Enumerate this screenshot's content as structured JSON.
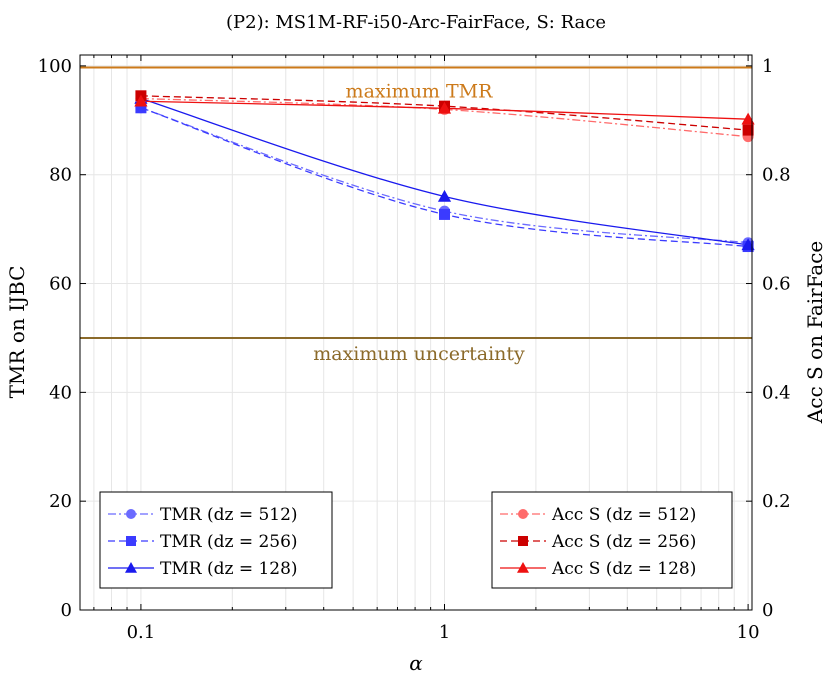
{
  "chart_data": {
    "type": "line",
    "title": "(P2):  MS1M-RF-i50-Arc-FairFace,  S: Race",
    "xlabel": "α",
    "ylabel_left": "TMR on IJBC",
    "ylabel_right": "Acc S on FairFace",
    "x_scale": "log",
    "xlim": [
      0.063,
      10.3
    ],
    "x_ticks": [
      0.1,
      1,
      10
    ],
    "x_tick_labels": [
      "0.1",
      "1",
      "10"
    ],
    "ylim_left": [
      0,
      102
    ],
    "y_ticks_left": [
      0,
      20,
      40,
      60,
      80,
      100
    ],
    "y_tick_labels_left": [
      "0",
      "20",
      "40",
      "60",
      "80",
      "100"
    ],
    "ylim_right": [
      0,
      1.02
    ],
    "y_ticks_right": [
      0,
      0.2,
      0.4,
      0.6,
      0.8,
      1
    ],
    "y_tick_labels_right": [
      "0",
      "0.2",
      "0.4",
      "0.6",
      "0.8",
      "1"
    ],
    "grid": true,
    "x": [
      0.1,
      1,
      10
    ],
    "series": [
      {
        "name": "TMR (d_z = 512)",
        "legend": "TMR (dz = 512)",
        "axis": "left",
        "values": [
          92.3,
          73.3,
          67.5
        ],
        "color": "#6b6bff",
        "style": "dashdot",
        "marker": "circle"
      },
      {
        "name": "TMR (d_z = 256)",
        "legend": "TMR (dz = 256)",
        "axis": "left",
        "values": [
          92.3,
          72.7,
          66.8
        ],
        "color": "#3b3bff",
        "style": "dashed",
        "marker": "square"
      },
      {
        "name": "TMR (d_z = 128)",
        "legend": "TMR (dz = 128)",
        "axis": "left",
        "values": [
          94.0,
          76.0,
          67.1
        ],
        "color": "#1a1aee",
        "style": "solid",
        "marker": "triangle"
      },
      {
        "name": "Acc S (d_z = 512)",
        "legend": "Acc S (dz = 512)",
        "axis": "right",
        "values": [
          0.94,
          0.92,
          0.87
        ],
        "color": "#ff6b6b",
        "style": "dashdot",
        "marker": "circle"
      },
      {
        "name": "Acc S (d_z = 256)",
        "legend": "Acc S (dz = 256)",
        "axis": "right",
        "values": [
          0.945,
          0.926,
          0.882
        ],
        "color": "#cc0000",
        "style": "dashed",
        "marker": "square"
      },
      {
        "name": "Acc S (d_z = 128)",
        "legend": "Acc S (dz = 128)",
        "axis": "right",
        "values": [
          0.935,
          0.922,
          0.902
        ],
        "color": "#ee1111",
        "style": "solid",
        "marker": "triangle"
      }
    ],
    "reference_lines": [
      {
        "label": "maximum TMR",
        "value": 99.7,
        "axis": "left",
        "color": "#cc7a1a"
      },
      {
        "label": "maximum uncertainty",
        "value": 50,
        "axis": "left",
        "color": "#8b6a2a"
      }
    ],
    "legends": [
      {
        "position": "bottom-left",
        "entries": [
          0,
          1,
          2
        ]
      },
      {
        "position": "bottom-right",
        "entries": [
          3,
          4,
          5
        ]
      }
    ]
  }
}
